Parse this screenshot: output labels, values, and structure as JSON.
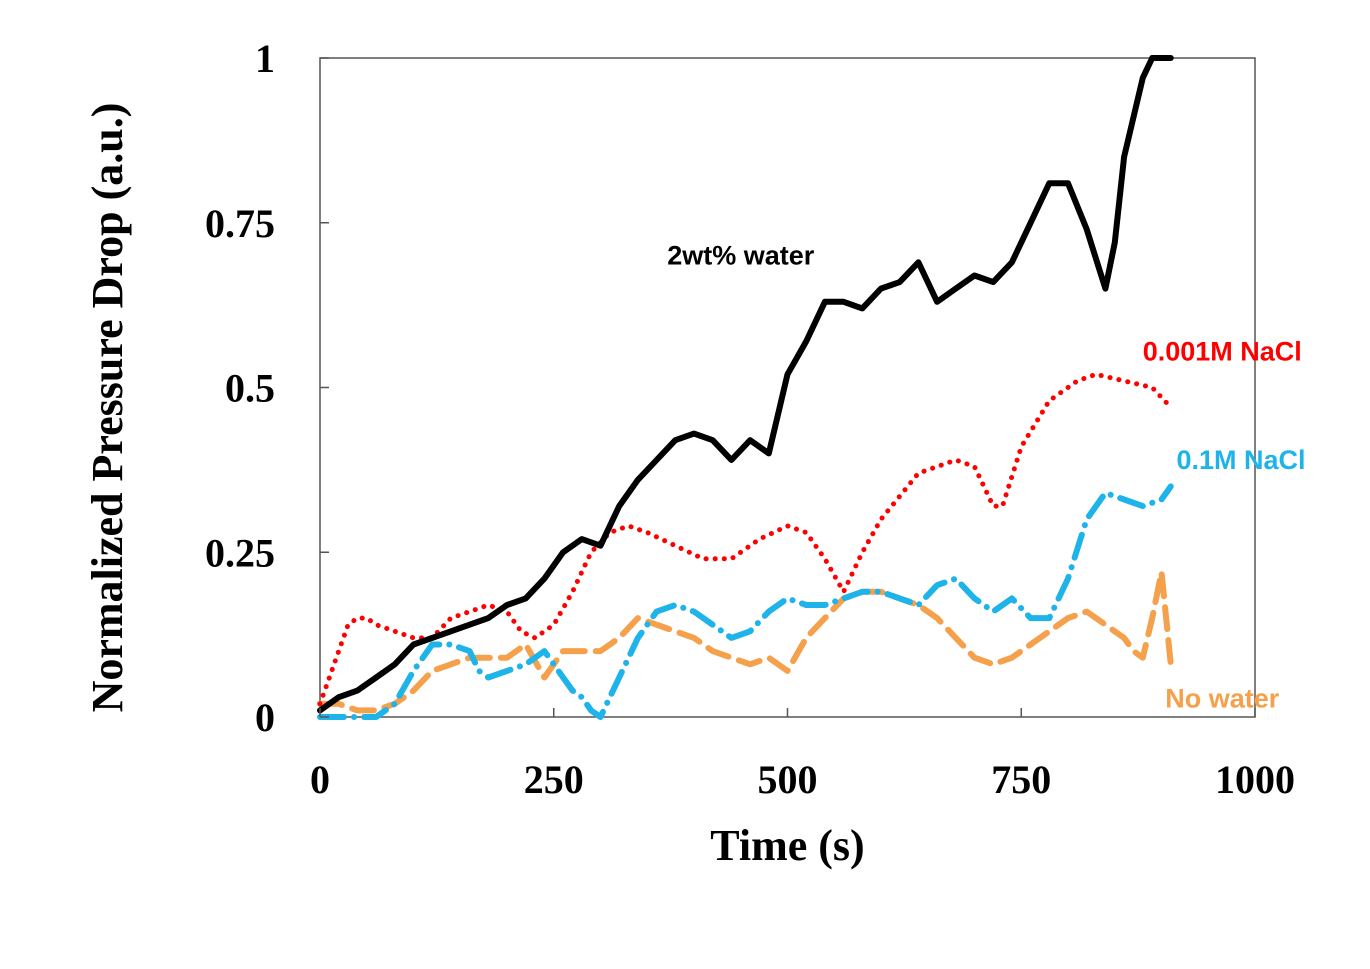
{
  "chart_data": {
    "type": "line",
    "title": "",
    "xlabel": "Time (s)",
    "ylabel": "Normalized Pressure Drop (a.u.)",
    "xlim": [
      0,
      1000
    ],
    "ylim": [
      0,
      1
    ],
    "x_ticks": [
      0,
      250,
      500,
      750,
      1000
    ],
    "y_ticks": [
      0,
      0.25,
      0.5,
      0.75,
      1
    ],
    "x_tick_labels": [
      "0",
      "250",
      "500",
      "750",
      "1000"
    ],
    "y_tick_labels": [
      "0",
      "0.25",
      "0.5",
      "0.75",
      "1"
    ],
    "grid": false,
    "legend": "inline labels",
    "series": [
      {
        "name": "2wt% water",
        "color": "#000000",
        "style": "solid",
        "label_pos": [
          450,
          0.7
        ],
        "x": [
          0,
          20,
          40,
          60,
          80,
          100,
          120,
          140,
          160,
          180,
          200,
          220,
          240,
          260,
          280,
          300,
          320,
          340,
          360,
          380,
          400,
          420,
          440,
          460,
          480,
          500,
          520,
          540,
          560,
          580,
          600,
          620,
          640,
          650,
          660,
          680,
          700,
          720,
          740,
          760,
          780,
          800,
          820,
          840,
          850,
          860,
          880,
          890,
          900,
          910
        ],
        "y": [
          0.01,
          0.03,
          0.04,
          0.06,
          0.08,
          0.11,
          0.12,
          0.13,
          0.14,
          0.15,
          0.17,
          0.18,
          0.21,
          0.25,
          0.27,
          0.26,
          0.32,
          0.36,
          0.39,
          0.42,
          0.43,
          0.42,
          0.39,
          0.42,
          0.4,
          0.52,
          0.57,
          0.63,
          0.63,
          0.62,
          0.65,
          0.66,
          0.69,
          0.66,
          0.63,
          0.65,
          0.67,
          0.66,
          0.69,
          0.75,
          0.81,
          0.81,
          0.74,
          0.65,
          0.72,
          0.85,
          0.97,
          1.0,
          1.0,
          1.0
        ]
      },
      {
        "name": "0.001M NaCl",
        "color": "#ff0000",
        "style": "dotted",
        "label_pos": [
          965,
          0.555
        ],
        "x": [
          0,
          10,
          20,
          30,
          40,
          50,
          60,
          80,
          100,
          120,
          140,
          160,
          180,
          200,
          215,
          230,
          250,
          270,
          290,
          310,
          330,
          350,
          380,
          410,
          440,
          470,
          500,
          520,
          540,
          560,
          580,
          600,
          640,
          680,
          700,
          710,
          720,
          730,
          750,
          780,
          810,
          830,
          860,
          890,
          910
        ],
        "y": [
          0.02,
          0.06,
          0.1,
          0.14,
          0.15,
          0.15,
          0.14,
          0.13,
          0.12,
          0.12,
          0.15,
          0.16,
          0.17,
          0.16,
          0.13,
          0.12,
          0.14,
          0.19,
          0.25,
          0.28,
          0.29,
          0.28,
          0.26,
          0.24,
          0.24,
          0.27,
          0.29,
          0.28,
          0.24,
          0.19,
          0.25,
          0.3,
          0.37,
          0.39,
          0.38,
          0.35,
          0.32,
          0.32,
          0.41,
          0.48,
          0.51,
          0.52,
          0.51,
          0.5,
          0.47
        ]
      },
      {
        "name": "0.1M NaCl",
        "color": "#1eb4ea",
        "style": "dash-dot",
        "label_pos": [
          985,
          0.39
        ],
        "x": [
          0,
          20,
          40,
          60,
          80,
          100,
          120,
          140,
          160,
          170,
          180,
          200,
          220,
          240,
          260,
          270,
          280,
          290,
          300,
          320,
          340,
          360,
          380,
          400,
          420,
          440,
          460,
          480,
          500,
          520,
          540,
          560,
          580,
          600,
          620,
          640,
          660,
          680,
          700,
          720,
          740,
          760,
          780,
          800,
          820,
          840,
          860,
          880,
          900,
          910
        ],
        "y": [
          0.0,
          0.0,
          0.0,
          0.0,
          0.02,
          0.07,
          0.11,
          0.11,
          0.1,
          0.07,
          0.06,
          0.07,
          0.08,
          0.1,
          0.06,
          0.04,
          0.03,
          0.01,
          0.0,
          0.06,
          0.12,
          0.16,
          0.17,
          0.16,
          0.14,
          0.12,
          0.13,
          0.16,
          0.18,
          0.17,
          0.17,
          0.18,
          0.19,
          0.19,
          0.18,
          0.17,
          0.2,
          0.21,
          0.18,
          0.16,
          0.18,
          0.15,
          0.15,
          0.21,
          0.3,
          0.34,
          0.33,
          0.32,
          0.33,
          0.35
        ]
      },
      {
        "name": "No water",
        "color": "#f5a04b",
        "style": "dashed",
        "label_pos": [
          965,
          0.028
        ],
        "x": [
          0,
          20,
          40,
          60,
          80,
          100,
          120,
          140,
          160,
          180,
          200,
          220,
          240,
          260,
          280,
          300,
          320,
          340,
          360,
          380,
          400,
          420,
          440,
          460,
          480,
          500,
          520,
          540,
          560,
          580,
          600,
          620,
          640,
          660,
          680,
          700,
          720,
          740,
          760,
          780,
          800,
          820,
          840,
          860,
          870,
          880,
          890,
          900,
          910
        ],
        "y": [
          0.02,
          0.02,
          0.01,
          0.01,
          0.02,
          0.04,
          0.07,
          0.08,
          0.09,
          0.09,
          0.09,
          0.11,
          0.06,
          0.1,
          0.1,
          0.1,
          0.12,
          0.15,
          0.14,
          0.13,
          0.12,
          0.1,
          0.09,
          0.08,
          0.09,
          0.07,
          0.12,
          0.15,
          0.18,
          0.19,
          0.19,
          0.18,
          0.17,
          0.15,
          0.12,
          0.09,
          0.08,
          0.09,
          0.11,
          0.13,
          0.15,
          0.16,
          0.14,
          0.12,
          0.1,
          0.09,
          0.15,
          0.22,
          0.08
        ]
      }
    ]
  }
}
